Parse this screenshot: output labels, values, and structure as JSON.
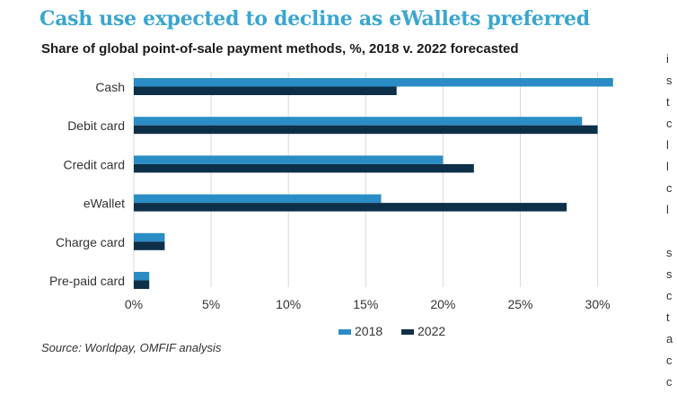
{
  "header": {
    "title": "Cash use expected to decline as eWallets preferred",
    "subtitle": "Share of global point-of-sale payment methods, %, 2018 v. 2022 forecasted"
  },
  "footer": {
    "source": "Source: Worldpay, OMFIF analysis"
  },
  "colors": {
    "title": "#3aa6cf",
    "s2018": "#2a8dc5",
    "s2022": "#0e2f48",
    "grid": "#d9d9d9"
  },
  "cut_text": [
    "i",
    "s",
    "t",
    "c",
    "l",
    "l",
    "c",
    "l",
    "",
    "s",
    "s",
    "c",
    "t",
    "a",
    "c",
    "c"
  ],
  "chart_data": {
    "type": "bar",
    "orientation": "horizontal",
    "categories": [
      "Cash",
      "Debit card",
      "Credit card",
      "eWallet",
      "Charge card",
      "Pre-paid card"
    ],
    "series": [
      {
        "name": "2018",
        "values": [
          31,
          29,
          20,
          16,
          2,
          1
        ]
      },
      {
        "name": "2022",
        "values": [
          17,
          30,
          22,
          28,
          2,
          1
        ]
      }
    ],
    "xlim": [
      0,
      32
    ],
    "xticks": [
      0,
      5,
      10,
      15,
      20,
      25,
      30
    ],
    "xtick_labels": [
      "0%",
      "5%",
      "10%",
      "15%",
      "20%",
      "25%",
      "30%"
    ],
    "legend": [
      "2018",
      "2022"
    ],
    "legend_position": "bottom-center",
    "grid": true
  }
}
